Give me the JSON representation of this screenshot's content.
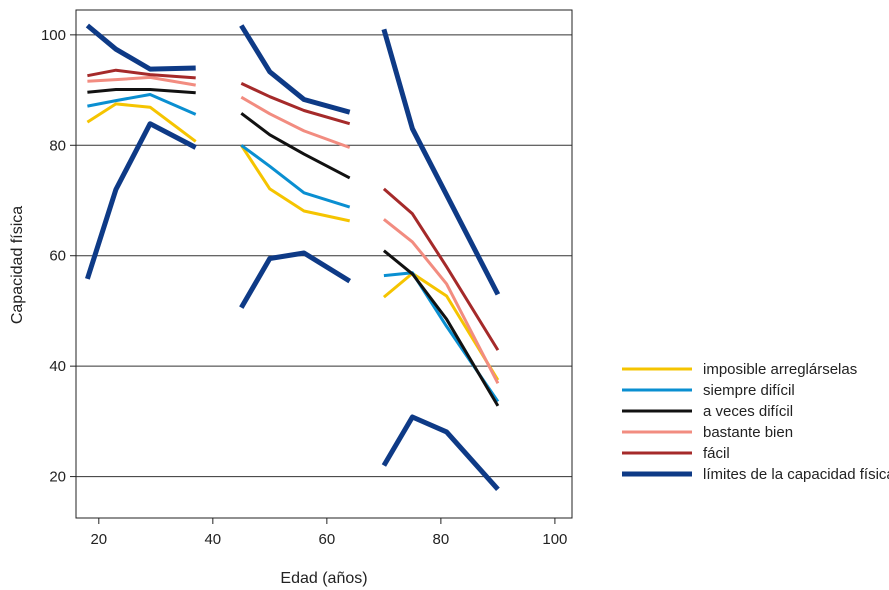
{
  "chart_data": {
    "type": "line",
    "xlabel": "Edad (años)",
    "ylabel": "Capacidad física",
    "xlim": [
      16,
      103
    ],
    "ylim": [
      12.5,
      104.5
    ],
    "xticks": [
      20,
      40,
      60,
      80,
      100
    ],
    "yticks": [
      20,
      40,
      60,
      80,
      100
    ],
    "grid": "horizontal",
    "legend_position": "right",
    "series": [
      {
        "name": "imposible arreglárselas",
        "color": "#F5C400",
        "width": 3,
        "segments": [
          [
            [
              18,
              84.2
            ],
            [
              23,
              87.5
            ],
            [
              29,
              86.9
            ],
            [
              37,
              80.7
            ]
          ],
          [
            [
              45,
              80.0
            ],
            [
              50,
              72.1
            ],
            [
              56,
              68.1
            ],
            [
              64,
              66.3
            ]
          ],
          [
            [
              70,
              52.5
            ],
            [
              75,
              56.8
            ],
            [
              81,
              52.7
            ],
            [
              90,
              37.5
            ]
          ]
        ]
      },
      {
        "name": "siempre difícil",
        "color": "#0A8FD1",
        "width": 3,
        "segments": [
          [
            [
              18,
              87.1
            ],
            [
              23,
              88.1
            ],
            [
              29,
              89.2
            ],
            [
              37,
              85.6
            ]
          ],
          [
            [
              45,
              80.0
            ],
            [
              50,
              76.2
            ],
            [
              56,
              71.4
            ],
            [
              64,
              68.8
            ]
          ],
          [
            [
              70,
              56.4
            ],
            [
              75,
              56.9
            ],
            [
              81,
              47.2
            ],
            [
              90,
              33.6
            ]
          ]
        ]
      },
      {
        "name": "a veces difícil",
        "color": "#111111",
        "width": 3,
        "segments": [
          [
            [
              18,
              89.6
            ],
            [
              23,
              90.1
            ],
            [
              29,
              90.1
            ],
            [
              37,
              89.5
            ]
          ],
          [
            [
              45,
              85.8
            ],
            [
              50,
              81.9
            ],
            [
              56,
              78.4
            ],
            [
              64,
              74.1
            ]
          ],
          [
            [
              70,
              60.9
            ],
            [
              75,
              56.7
            ],
            [
              81,
              48.5
            ],
            [
              90,
              32.8
            ]
          ]
        ]
      },
      {
        "name": "bastante bien",
        "color": "#F28C80",
        "width": 3,
        "segments": [
          [
            [
              18,
              91.6
            ],
            [
              23,
              91.9
            ],
            [
              29,
              92.3
            ],
            [
              37,
              90.9
            ]
          ],
          [
            [
              45,
              88.7
            ],
            [
              50,
              85.7
            ],
            [
              56,
              82.6
            ],
            [
              64,
              79.6
            ]
          ],
          [
            [
              70,
              66.6
            ],
            [
              75,
              62.5
            ],
            [
              81,
              54.9
            ],
            [
              90,
              36.9
            ]
          ]
        ]
      },
      {
        "name": "fácil",
        "color": "#A52A2A",
        "width": 3,
        "segments": [
          [
            [
              18,
              92.6
            ],
            [
              23,
              93.6
            ],
            [
              29,
              92.8
            ],
            [
              37,
              92.2
            ]
          ],
          [
            [
              45,
              91.2
            ],
            [
              50,
              88.8
            ],
            [
              56,
              86.3
            ],
            [
              64,
              83.9
            ]
          ],
          [
            [
              70,
              72.1
            ],
            [
              75,
              67.6
            ],
            [
              81,
              58.0
            ],
            [
              90,
              42.9
            ]
          ]
        ]
      },
      {
        "name": "límites de la capacidad física",
        "color": "#0E3A86",
        "width": 5,
        "segments": [
          [
            [
              18,
              101.7
            ],
            [
              23,
              97.4
            ],
            [
              29,
              93.8
            ],
            [
              37,
              94.0
            ]
          ],
          [
            [
              18,
              55.8
            ],
            [
              23,
              72.0
            ],
            [
              29,
              83.9
            ],
            [
              37,
              79.6
            ]
          ],
          [
            [
              45,
              101.7
            ],
            [
              50,
              93.3
            ],
            [
              56,
              88.3
            ],
            [
              64,
              86.0
            ]
          ],
          [
            [
              45,
              50.6
            ],
            [
              50,
              59.5
            ],
            [
              56,
              60.5
            ],
            [
              64,
              55.4
            ]
          ],
          [
            [
              70,
              101.0
            ],
            [
              75,
              83.0
            ],
            [
              90,
              53.0
            ]
          ],
          [
            [
              70,
              22.0
            ],
            [
              75,
              30.8
            ],
            [
              81,
              28.1
            ],
            [
              90,
              17.7
            ]
          ]
        ]
      }
    ]
  }
}
